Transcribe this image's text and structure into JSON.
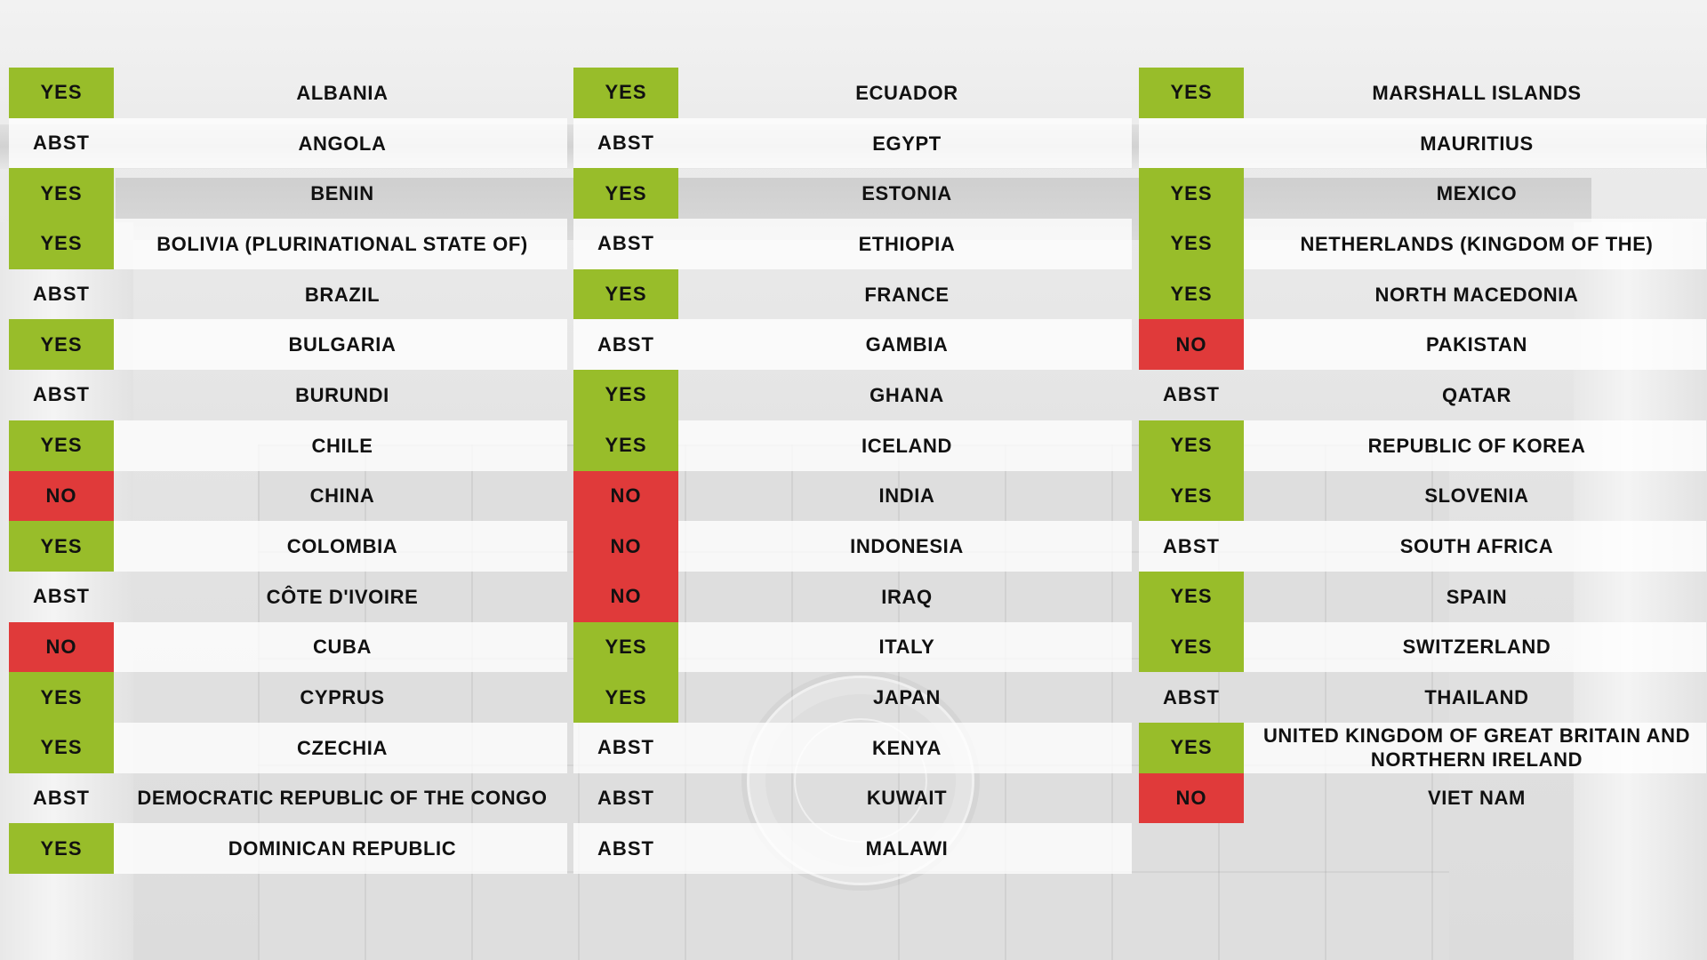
{
  "columns": [
    {
      "rows": [
        {
          "vote": "YES",
          "country": "ALBANIA"
        },
        {
          "vote": "ABST",
          "country": "ANGOLA"
        },
        {
          "vote": "YES",
          "country": "BENIN"
        },
        {
          "vote": "YES",
          "country": "BOLIVIA (PLURINATIONAL STATE OF)"
        },
        {
          "vote": "ABST",
          "country": "BRAZIL"
        },
        {
          "vote": "YES",
          "country": "BULGARIA"
        },
        {
          "vote": "ABST",
          "country": "BURUNDI"
        },
        {
          "vote": "YES",
          "country": "CHILE"
        },
        {
          "vote": "NO",
          "country": "CHINA"
        },
        {
          "vote": "YES",
          "country": "COLOMBIA"
        },
        {
          "vote": "ABST",
          "country": "CÔTE D'IVOIRE"
        },
        {
          "vote": "NO",
          "country": "CUBA"
        },
        {
          "vote": "YES",
          "country": "CYPRUS"
        },
        {
          "vote": "YES",
          "country": "CZECHIA"
        },
        {
          "vote": "ABST",
          "country": "DEMOCRATIC REPUBLIC OF THE CONGO"
        },
        {
          "vote": "YES",
          "country": "DOMINICAN REPUBLIC"
        }
      ]
    },
    {
      "rows": [
        {
          "vote": "YES",
          "country": "ECUADOR"
        },
        {
          "vote": "ABST",
          "country": "EGYPT"
        },
        {
          "vote": "YES",
          "country": "ESTONIA"
        },
        {
          "vote": "ABST",
          "country": "ETHIOPIA"
        },
        {
          "vote": "YES",
          "country": "FRANCE"
        },
        {
          "vote": "ABST",
          "country": "GAMBIA"
        },
        {
          "vote": "YES",
          "country": "GHANA"
        },
        {
          "vote": "YES",
          "country": "ICELAND"
        },
        {
          "vote": "NO",
          "country": "INDIA"
        },
        {
          "vote": "NO",
          "country": "INDONESIA"
        },
        {
          "vote": "NO",
          "country": "IRAQ"
        },
        {
          "vote": "YES",
          "country": "ITALY"
        },
        {
          "vote": "YES",
          "country": "JAPAN"
        },
        {
          "vote": "ABST",
          "country": "KENYA"
        },
        {
          "vote": "ABST",
          "country": "KUWAIT"
        },
        {
          "vote": "ABST",
          "country": "MALAWI"
        }
      ]
    },
    {
      "rows": [
        {
          "vote": "YES",
          "country": "MARSHALL ISLANDS"
        },
        {
          "vote": "",
          "country": "MAURITIUS"
        },
        {
          "vote": "YES",
          "country": "MEXICO"
        },
        {
          "vote": "YES",
          "country": "NETHERLANDS (KINGDOM OF THE)"
        },
        {
          "vote": "YES",
          "country": "NORTH MACEDONIA"
        },
        {
          "vote": "NO",
          "country": "PAKISTAN"
        },
        {
          "vote": "ABST",
          "country": "QATAR"
        },
        {
          "vote": "YES",
          "country": "REPUBLIC OF KOREA"
        },
        {
          "vote": "YES",
          "country": "SLOVENIA"
        },
        {
          "vote": "ABST",
          "country": "SOUTH AFRICA"
        },
        {
          "vote": "YES",
          "country": "SPAIN"
        },
        {
          "vote": "YES",
          "country": "SWITZERLAND"
        },
        {
          "vote": "ABST",
          "country": "THAILAND"
        },
        {
          "vote": "YES",
          "country": "UNITED KINGDOM OF GREAT BRITAIN AND NORTHERN IRELAND"
        },
        {
          "vote": "NO",
          "country": "VIET NAM"
        }
      ]
    }
  ],
  "colors": {
    "yes": "#98bd2a",
    "no": "#e03a3a",
    "text": "#111111"
  }
}
